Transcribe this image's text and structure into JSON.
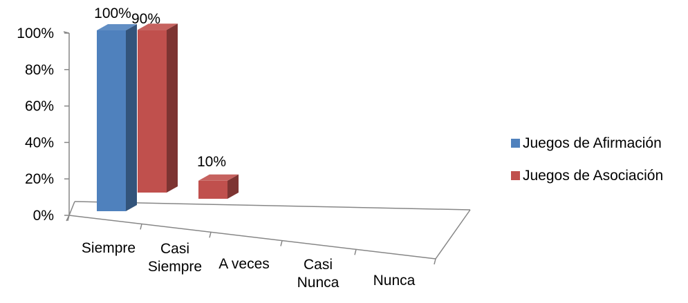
{
  "chart_data": {
    "type": "bar",
    "style": "3d-clustered-column",
    "categories": [
      "Siempre",
      "Casi Siempre",
      "A veces",
      "Casi Nunca",
      "Nunca"
    ],
    "category_lines": [
      [
        "Siempre"
      ],
      [
        "Casi",
        "Siempre"
      ],
      [
        "A veces"
      ],
      [
        "Casi",
        "Nunca"
      ],
      [
        "Nunca"
      ]
    ],
    "series": [
      {
        "name": "Juegos de Afirmación",
        "values": [
          100,
          null,
          null,
          null,
          null
        ],
        "labels": [
          "100%",
          "",
          "",
          "",
          ""
        ],
        "color": "#4F81BD"
      },
      {
        "name": "Juegos de Asociación",
        "values": [
          90,
          null,
          10,
          null,
          null
        ],
        "labels": [
          "90%",
          "",
          "10%",
          "",
          ""
        ],
        "color": "#C0504D"
      }
    ],
    "yticks": [
      "0%",
      "20%",
      "40%",
      "60%",
      "80%",
      "100%"
    ],
    "ylim": [
      0,
      100
    ],
    "legend_position": "right",
    "grid": false
  }
}
